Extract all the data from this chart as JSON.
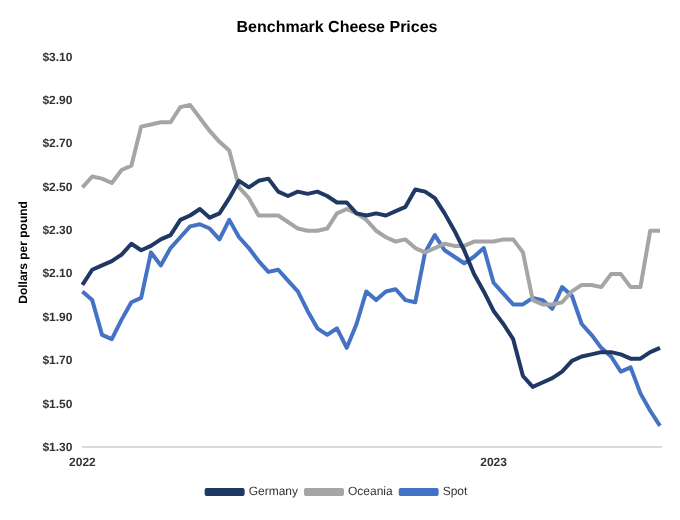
{
  "chart_data": {
    "type": "line",
    "title": "Benchmark Cheese Prices",
    "ylabel": "Dollars per pound",
    "categories": [
      "2022",
      null,
      null,
      null,
      null,
      null,
      null,
      null,
      null,
      null,
      null,
      null,
      null,
      null,
      null,
      null,
      null,
      null,
      null,
      null,
      null,
      null,
      null,
      null,
      null,
      null,
      null,
      null,
      null,
      null,
      null,
      null,
      null,
      null,
      null,
      null,
      null,
      null,
      null,
      null,
      null,
      null,
      "2023",
      null,
      null,
      null,
      null,
      null,
      null,
      null,
      null,
      null,
      null,
      null,
      null,
      null,
      null,
      null,
      null,
      null
    ],
    "series": [
      {
        "name": "Germany",
        "color": "#203864",
        "values": [
          2.05,
          2.12,
          2.14,
          2.16,
          2.19,
          2.24,
          2.21,
          2.23,
          2.26,
          2.28,
          2.35,
          2.37,
          2.4,
          2.36,
          2.38,
          2.45,
          2.53,
          2.5,
          2.53,
          2.54,
          2.48,
          2.46,
          2.48,
          2.47,
          2.48,
          2.46,
          2.43,
          2.43,
          2.38,
          2.37,
          2.38,
          2.37,
          2.39,
          2.41,
          2.49,
          2.48,
          2.45,
          2.38,
          2.3,
          2.21,
          2.1,
          2.02,
          1.93,
          1.87,
          1.8,
          1.63,
          1.58,
          1.6,
          1.62,
          1.65,
          1.7,
          1.72,
          1.73,
          1.74,
          1.74,
          1.73,
          1.71,
          1.71,
          1.74,
          1.76
        ]
      },
      {
        "name": "Oceania",
        "color": "#a5a5a5",
        "values": [
          2.5,
          2.55,
          2.54,
          2.52,
          2.58,
          2.6,
          2.78,
          2.79,
          2.8,
          2.8,
          2.87,
          2.88,
          2.82,
          2.76,
          2.71,
          2.67,
          2.5,
          2.45,
          2.37,
          2.37,
          2.37,
          2.34,
          2.31,
          2.3,
          2.3,
          2.31,
          2.38,
          2.4,
          2.38,
          2.35,
          2.3,
          2.27,
          2.25,
          2.26,
          2.22,
          2.2,
          2.22,
          2.24,
          2.23,
          2.23,
          2.25,
          2.25,
          2.25,
          2.26,
          2.26,
          2.2,
          1.98,
          1.96,
          1.96,
          1.97,
          2.02,
          2.05,
          2.05,
          2.04,
          2.1,
          2.1,
          2.04,
          2.04,
          2.3,
          2.3
        ]
      },
      {
        "name": "Spot",
        "color": "#4472c4",
        "values": [
          2.02,
          1.98,
          1.82,
          1.8,
          1.89,
          1.97,
          1.99,
          2.2,
          2.14,
          2.22,
          2.27,
          2.32,
          2.33,
          2.31,
          2.26,
          2.35,
          2.27,
          2.22,
          2.16,
          2.11,
          2.12,
          2.07,
          2.02,
          1.93,
          1.85,
          1.82,
          1.85,
          1.76,
          1.87,
          2.02,
          1.98,
          2.02,
          2.03,
          1.98,
          1.97,
          2.2,
          2.28,
          2.21,
          2.18,
          2.15,
          2.18,
          2.22,
          2.06,
          2.01,
          1.96,
          1.96,
          1.99,
          1.98,
          1.94,
          2.04,
          2.0,
          1.87,
          1.82,
          1.76,
          1.72,
          1.65,
          1.67,
          1.55,
          1.47,
          1.4
        ]
      }
    ],
    "ylim": [
      1.3,
      3.1
    ],
    "yticks": [
      {
        "value": 1.3,
        "label": "$1.30"
      },
      {
        "value": 1.5,
        "label": "$1.50"
      },
      {
        "value": 1.7,
        "label": "$1.70"
      },
      {
        "value": 1.9,
        "label": "$1.90"
      },
      {
        "value": 2.1,
        "label": "$2.10"
      },
      {
        "value": 2.3,
        "label": "$2.30"
      },
      {
        "value": 2.5,
        "label": "$2.50"
      },
      {
        "value": 2.7,
        "label": "$2.70"
      },
      {
        "value": 2.9,
        "label": "$2.90"
      },
      {
        "value": 3.1,
        "label": "$3.10"
      }
    ],
    "grid": false,
    "legend": "bottom",
    "marker": "none",
    "line_style": "solid"
  }
}
